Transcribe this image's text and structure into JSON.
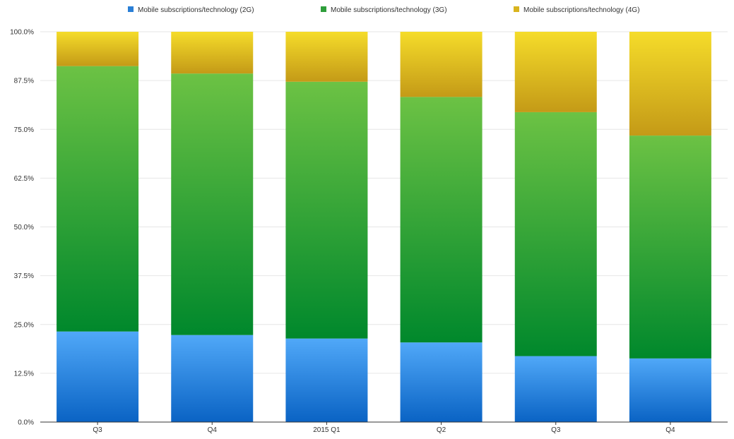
{
  "chart_data": {
    "type": "bar",
    "stacked": true,
    "categories": [
      "Q3",
      "Q4",
      "2015 Q1",
      "Q2",
      "Q3",
      "Q4"
    ],
    "series": [
      {
        "name": "Mobile subscriptions/technology (2G)",
        "color": "#2a7fd6",
        "values": [
          23.2,
          22.3,
          21.4,
          20.4,
          16.9,
          16.3
        ]
      },
      {
        "name": "Mobile subscriptions/technology (3G)",
        "color": "#2e9e3b",
        "values": [
          68.0,
          67.0,
          65.8,
          62.9,
          62.5,
          57.1
        ]
      },
      {
        "name": "Mobile subscriptions/technology (4G)",
        "color": "#d9b41e",
        "values": [
          8.8,
          10.7,
          12.8,
          16.7,
          20.6,
          26.6
        ]
      }
    ],
    "ylim": [
      0,
      100
    ],
    "y_ticks": [
      "0.0%",
      "12.5%",
      "25.0%",
      "37.5%",
      "50.0%",
      "62.5%",
      "75.0%",
      "87.5%",
      "100.0%"
    ],
    "y_tick_values": [
      0,
      12.5,
      25,
      37.5,
      50,
      62.5,
      75,
      87.5,
      100
    ],
    "grid": true,
    "legend_position": "top-center",
    "title": "",
    "xlabel": "",
    "ylabel": ""
  }
}
